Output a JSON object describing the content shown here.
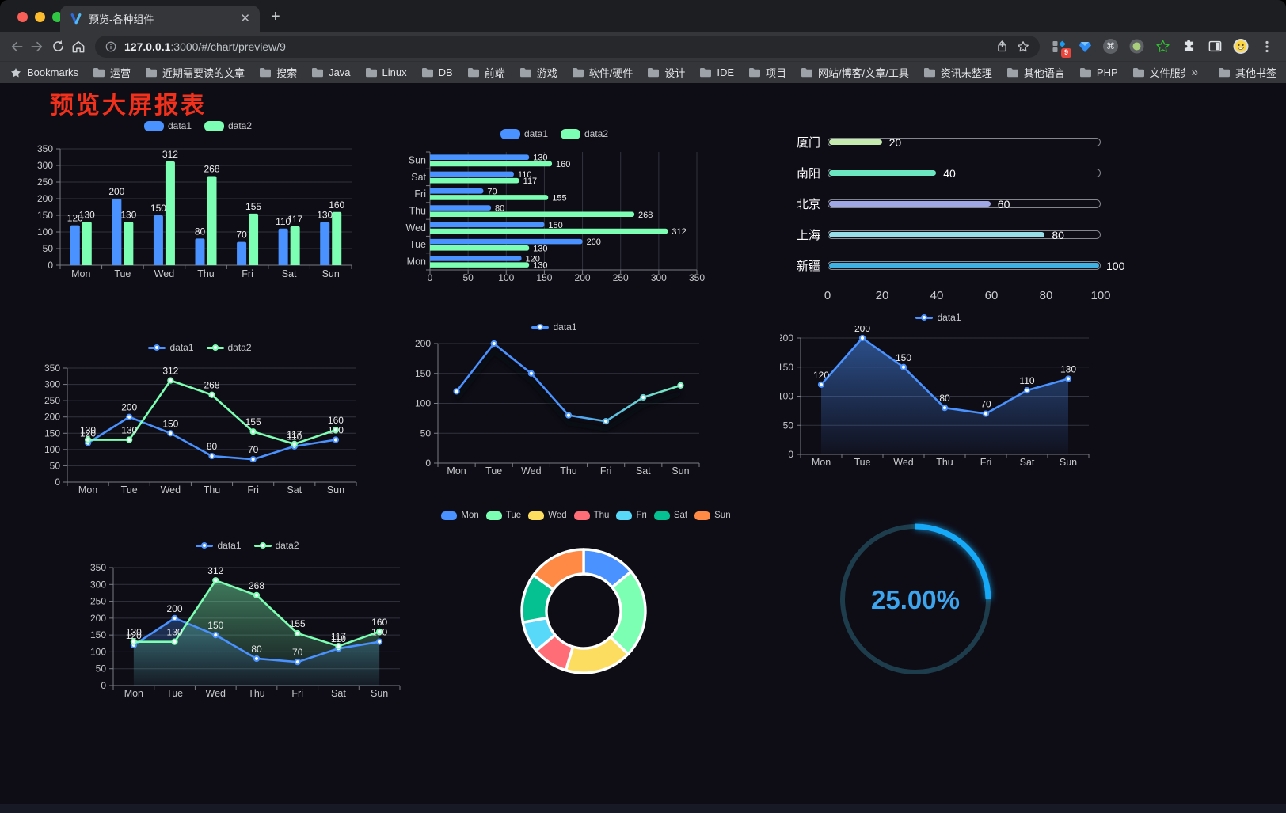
{
  "browser": {
    "tab_title": "预览-各种组件",
    "url_host": "127.0.0.1",
    "url_rest": ":3000/#/chart/preview/9",
    "extensions_badge": "9",
    "bookmarks_label": "Bookmarks",
    "overflow_chevron": "»",
    "other_bookmarks_label": "其他书签"
  },
  "bookmarks": [
    "运营",
    "近期需要读的文章",
    "搜索",
    "Java",
    "Linux",
    "DB",
    "前端",
    "游戏",
    "软件/硬件",
    "设计",
    "IDE",
    "项目",
    "网站/博客/文章/工具",
    "资讯未整理",
    "其他语言",
    "PHP",
    "文件服务器"
  ],
  "page": {
    "title": "预览大屏报表",
    "title_color": "#f2311d",
    "background": "#0e0c15"
  },
  "chart_data": [
    {
      "id": "bar-grouped",
      "type": "bar",
      "categories": [
        "Mon",
        "Tue",
        "Wed",
        "Thu",
        "Fri",
        "Sat",
        "Sun"
      ],
      "series": [
        {
          "name": "data1",
          "color": "#4992ff",
          "values": [
            120,
            200,
            150,
            80,
            70,
            110,
            130
          ]
        },
        {
          "name": "data2",
          "color": "#7cffb2",
          "values": [
            130,
            130,
            312,
            268,
            155,
            117,
            160
          ]
        }
      ],
      "ylim": [
        0,
        350
      ],
      "yticks": [
        0,
        50,
        100,
        150,
        200,
        250,
        300,
        350
      ],
      "legend_position": "top",
      "grid": true,
      "value_labels": true
    },
    {
      "id": "bar-horizontal",
      "type": "bar-horizontal",
      "categories_top_to_bottom": [
        "Sun",
        "Sat",
        "Fri",
        "Thu",
        "Wed",
        "Tue",
        "Mon"
      ],
      "series": [
        {
          "name": "data1",
          "color": "#4992ff",
          "values_top_to_bottom": [
            130,
            110,
            70,
            80,
            150,
            200,
            120
          ]
        },
        {
          "name": "data2",
          "color": "#7cffb2",
          "values_top_to_bottom": [
            160,
            117,
            155,
            268,
            312,
            130,
            130
          ]
        }
      ],
      "xlim": [
        0,
        350
      ],
      "xticks": [
        0,
        50,
        100,
        150,
        200,
        250,
        300,
        350
      ],
      "legend_position": "top",
      "grid": true,
      "value_labels": true
    },
    {
      "id": "progress-bars",
      "type": "progress",
      "items": [
        {
          "label": "厦门",
          "value": 20,
          "color": "#c4ebad"
        },
        {
          "label": "南阳",
          "value": 40,
          "color": "#6be6c1"
        },
        {
          "label": "北京",
          "value": 60,
          "color": "#a0a7e6"
        },
        {
          "label": "上海",
          "value": 80,
          "color": "#96dee8"
        },
        {
          "label": "新疆",
          "value": 100,
          "color": "#3fb1e3"
        }
      ],
      "max": 100,
      "xticks": [
        0,
        20,
        40,
        60,
        80,
        100
      ]
    },
    {
      "id": "line-two",
      "type": "line",
      "categories": [
        "Mon",
        "Tue",
        "Wed",
        "Thu",
        "Fri",
        "Sat",
        "Sun"
      ],
      "series": [
        {
          "name": "data1",
          "color": "#4992ff",
          "values": [
            120,
            200,
            150,
            80,
            70,
            110,
            130
          ]
        },
        {
          "name": "data2",
          "color": "#7cffb2",
          "values": [
            130,
            130,
            312,
            268,
            155,
            117,
            160
          ]
        }
      ],
      "ylim": [
        0,
        350
      ],
      "yticks": [
        0,
        50,
        100,
        150,
        200,
        250,
        300,
        350
      ],
      "legend_position": "top",
      "value_labels": true,
      "area": false
    },
    {
      "id": "line-gradient",
      "type": "line",
      "categories": [
        "Mon",
        "Tue",
        "Wed",
        "Thu",
        "Fri",
        "Sat",
        "Sun"
      ],
      "series": [
        {
          "name": "data1",
          "gradient": [
            "#4992ff",
            "#7cffb2"
          ],
          "values": [
            120,
            200,
            150,
            80,
            70,
            110,
            130
          ],
          "shadow": true
        }
      ],
      "ylim": [
        0,
        200
      ],
      "yticks": [
        0,
        50,
        100,
        150,
        200
      ],
      "legend_position": "top",
      "value_labels": false,
      "area": false
    },
    {
      "id": "line-area",
      "type": "line",
      "categories": [
        "Mon",
        "Tue",
        "Wed",
        "Thu",
        "Fri",
        "Sat",
        "Sun"
      ],
      "series": [
        {
          "name": "data1",
          "color": "#4992ff",
          "values": [
            120,
            200,
            150,
            80,
            70,
            110,
            130
          ],
          "area": true
        }
      ],
      "ylim": [
        0,
        200
      ],
      "yticks": [
        0,
        50,
        100,
        150,
        200
      ],
      "legend_position": "top",
      "value_labels": true
    },
    {
      "id": "line-area-two",
      "type": "line",
      "categories": [
        "Mon",
        "Tue",
        "Wed",
        "Thu",
        "Fri",
        "Sat",
        "Sun"
      ],
      "series": [
        {
          "name": "data1",
          "color": "#4992ff",
          "values": [
            120,
            200,
            150,
            80,
            70,
            110,
            130
          ],
          "area": true
        },
        {
          "name": "data2",
          "color": "#7cffb2",
          "values": [
            130,
            130,
            312,
            268,
            155,
            117,
            160
          ],
          "area": true
        }
      ],
      "ylim": [
        0,
        350
      ],
      "yticks": [
        0,
        50,
        100,
        150,
        200,
        250,
        300,
        350
      ],
      "legend_position": "top",
      "value_labels": true
    },
    {
      "id": "donut",
      "type": "pie",
      "items": [
        {
          "label": "Mon",
          "value": 120,
          "color": "#4992ff"
        },
        {
          "label": "Tue",
          "value": 200,
          "color": "#7cffb2"
        },
        {
          "label": "Wed",
          "value": 150,
          "color": "#fddd60"
        },
        {
          "label": "Thu",
          "value": 80,
          "color": "#ff6e76"
        },
        {
          "label": "Fri",
          "value": 70,
          "color": "#58d9f9"
        },
        {
          "label": "Sat",
          "value": 110,
          "color": "#05c091"
        },
        {
          "label": "Sun",
          "value": 130,
          "color": "#ff8a45"
        }
      ],
      "border_color": "#ffffff",
      "legend_position": "top",
      "donut": true
    },
    {
      "id": "gauge",
      "type": "gauge",
      "value_text": "25.00%",
      "percent": 25,
      "arc_color": "#19a9f7",
      "track_color": "#1e3d4c",
      "text_color": "#3da4ee"
    }
  ]
}
